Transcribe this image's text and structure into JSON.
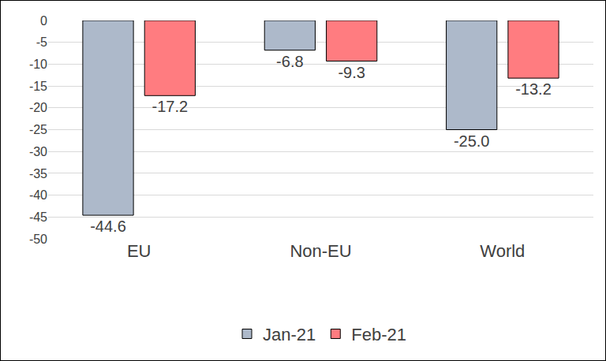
{
  "chart_data": {
    "type": "bar",
    "categories": [
      "EU",
      "Non-EU",
      "World"
    ],
    "series": [
      {
        "name": "Jan-21",
        "color": "#adb9ca",
        "values": [
          -44.6,
          -6.8,
          -25
        ],
        "value_labels": [
          "-44.6",
          "-6.8",
          "-25.0"
        ]
      },
      {
        "name": "Feb-21",
        "color": "#ff7c80",
        "values": [
          -17.2,
          -9.3,
          -13.2
        ]
      }
    ],
    "ylim": [
      -50,
      0
    ],
    "yticks": [
      -50,
      -45,
      -40,
      -35,
      -30,
      -25,
      -20,
      -15,
      -10,
      -5,
      0
    ],
    "grid": true,
    "legend": "bottom",
    "data_labels": true
  }
}
